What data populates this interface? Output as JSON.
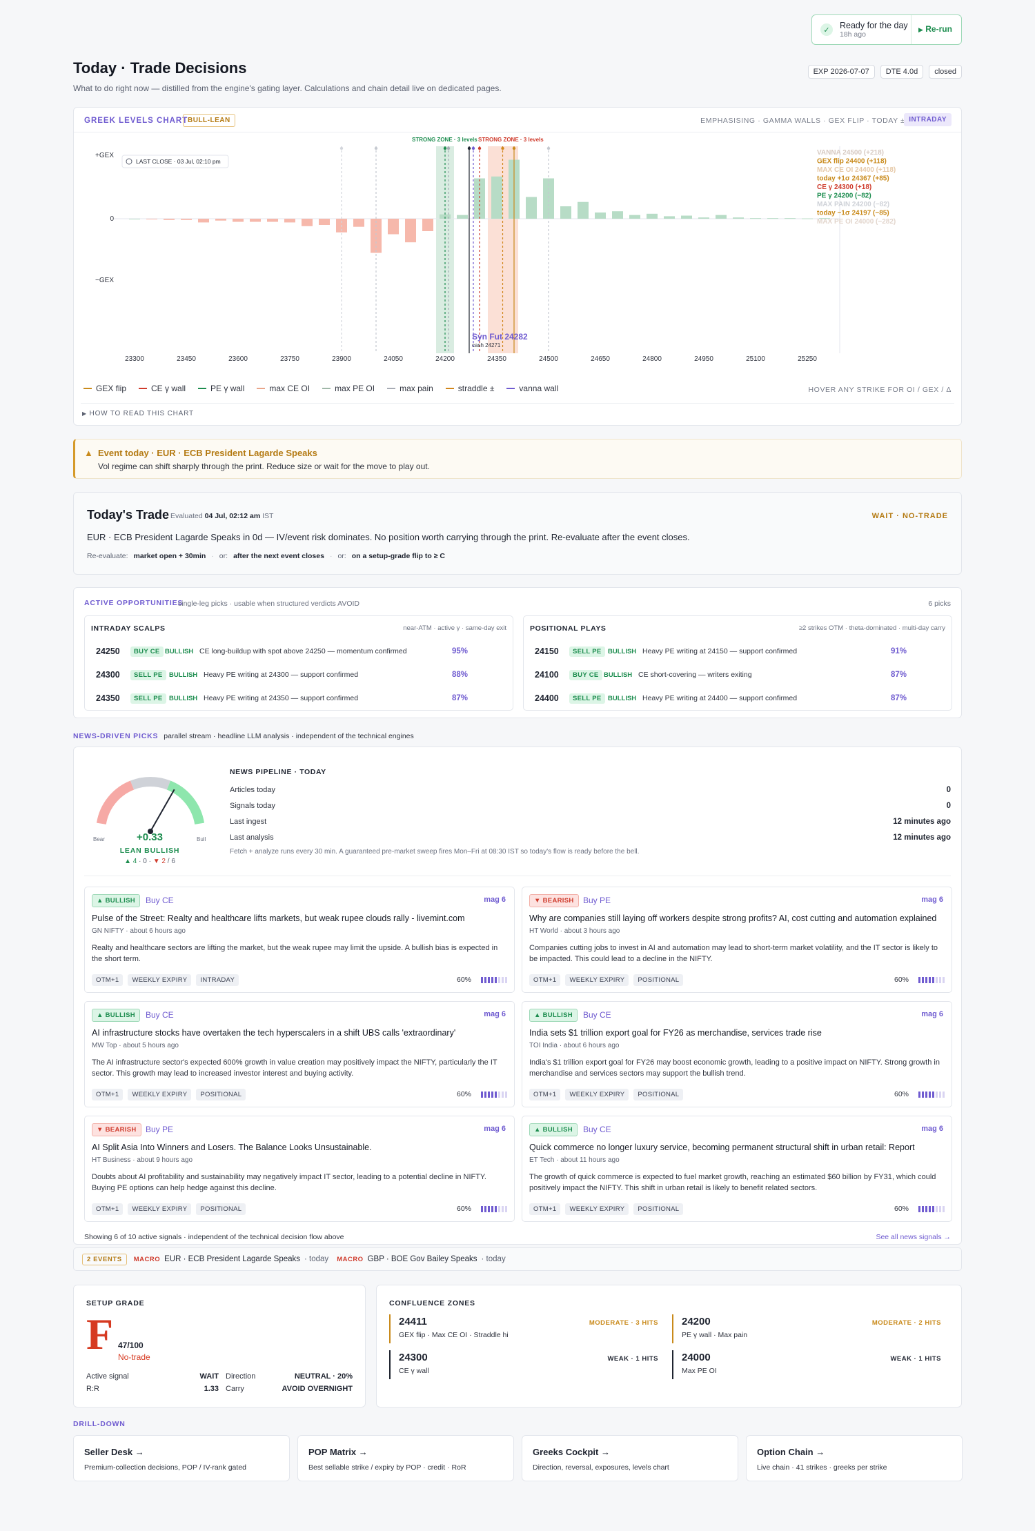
{
  "status": {
    "title": "Ready for the day",
    "age": "18h ago",
    "rerun": "Re-run"
  },
  "header": {
    "title": "Today · Trade Decisions",
    "subtitle": "What to do right now — distilled from the engine's gating layer. Calculations and chain detail live on dedicated pages.",
    "exp": "EXP 2026-07-07",
    "dte": "DTE 4.0d",
    "market": "closed"
  },
  "gex": {
    "title": "GREEK LEVELS CHART",
    "badge": "BULL-LEAN",
    "emph": "EMPHASISING · GAMMA WALLS · GEX FLIP · TODAY ±1Σ",
    "mode": "INTRADAY",
    "last_close": "LAST CLOSE · 03 Jul, 02:10 pm",
    "y_top": "+GEX",
    "y_mid": "0",
    "y_bot": "−GEX",
    "zone_green": "STRONG ZONE · 3 levels",
    "zone_red": "STRONG ZONE · 3 levels",
    "synfut": "Syn Fut 24282",
    "cash": "cash 24271",
    "hover_hint": "HOVER ANY STRIKE FOR OI / GEX / Δ",
    "how_to": "HOW TO READ THIS CHART",
    "levels": [
      {
        "text": "VANNA 24500 (+218)",
        "color": "#d6c9c1"
      },
      {
        "text": "GEX flip 24400 (+118)",
        "color": "#c98a1b"
      },
      {
        "text": "MAX CE OI 24400 (+118)",
        "color": "#e6c9a8"
      },
      {
        "text": "today +1σ 24367 (+85)",
        "color": "#c98a1b"
      },
      {
        "text": "CE γ 24300 (+18)",
        "color": "#cf3b2c"
      },
      {
        "text": "PE γ 24200 (−82)",
        "color": "#1d8d4f"
      },
      {
        "text": "MAX PAIN 24200 (−82)",
        "color": "#cfd2d8"
      },
      {
        "text": "today −1σ 24197 (−85)",
        "color": "#c98a1b"
      },
      {
        "text": "MAX PE OI 24000 (−282)",
        "color": "#e2d5cc"
      }
    ],
    "legend": [
      {
        "label": "GEX flip",
        "color": "#c98a1b",
        "dash": false
      },
      {
        "label": "CE γ wall",
        "color": "#cf3b2c",
        "dash": true
      },
      {
        "label": "PE γ wall",
        "color": "#1d8d4f",
        "dash": true
      },
      {
        "label": "max CE OI",
        "color": "#e9a58a",
        "dash": false
      },
      {
        "label": "max PE OI",
        "color": "#9fb7a8",
        "dash": false
      },
      {
        "label": "max pain",
        "color": "#a7abb4",
        "dash": false
      },
      {
        "label": "straddle ±",
        "color": "#d1861b",
        "dash": true
      },
      {
        "label": "vanna wall",
        "color": "#6f5bd0",
        "dash": false
      }
    ]
  },
  "chart_data": {
    "type": "bar",
    "title": "GREEK LEVELS CHART",
    "xlabel": "",
    "ylabel": "",
    "x_ticks": [
      23300,
      23450,
      23600,
      23750,
      23900,
      24050,
      24200,
      24350,
      24500,
      24650,
      24800,
      24950,
      25100,
      25250
    ],
    "strikes": [
      23300,
      23350,
      23400,
      23450,
      23500,
      23550,
      23600,
      23650,
      23700,
      23750,
      23800,
      23850,
      23900,
      23950,
      24000,
      24050,
      24100,
      24150,
      24200,
      24250,
      24300,
      24350,
      24400,
      24450,
      24500,
      24550,
      24600,
      24650,
      24700,
      24750,
      24800,
      24850,
      24900,
      24950,
      25000,
      25050,
      25100,
      25150,
      25200,
      25250,
      25300
    ],
    "gex": [
      0,
      -0.01,
      -0.02,
      -0.02,
      -0.06,
      -0.03,
      -0.05,
      -0.05,
      -0.05,
      -0.06,
      -0.12,
      -0.1,
      -0.22,
      -0.13,
      -0.55,
      -0.25,
      -0.38,
      -0.2,
      0.07,
      0.06,
      0.65,
      0.68,
      0.95,
      0.35,
      0.65,
      0.2,
      0.27,
      0.1,
      0.12,
      0.06,
      0.08,
      0.04,
      0.05,
      0.02,
      0.06,
      0.02,
      0.01,
      0.01,
      0.01,
      0.005,
      0.01
    ],
    "grid": false
  },
  "event": {
    "title": "Event today · EUR · ECB President Lagarde Speaks",
    "text": "Vol regime can shift sharply through the print. Reduce size or wait for the move to play out."
  },
  "trade": {
    "title": "Today's Trade",
    "evaluated_pre": "Evaluated",
    "evaluated": "04 Jul, 02:12 am",
    "tz": "IST",
    "status": "WAIT · NO-TRADE",
    "text": "EUR · ECB President Lagarde Speaks in 0d — IV/event risk dominates. No position worth carrying through the print. Re-evaluate after the event closes.",
    "reeval_label": "Re-evaluate:",
    "reeval1": "market open + 30min",
    "or1": "or:",
    "reeval2": "after the next event closes",
    "or2": "or:",
    "reeval3": "on a setup-grade flip to ≥ C"
  },
  "opps": {
    "title": "ACTIVE OPPORTUNITIES",
    "subtitle": "single-leg picks · usable when structured verdicts AVOID",
    "count": "6 picks",
    "intraday": {
      "title": "INTRADAY SCALPS",
      "hint": "near-ATM · active γ · same-day exit",
      "rows": [
        {
          "strike": "24250",
          "action": "BUY CE",
          "dir": "BULLISH",
          "note": "CE long-buildup with spot above 24250 — momentum confirmed",
          "pct": "95%"
        },
        {
          "strike": "24300",
          "action": "SELL PE",
          "dir": "BULLISH",
          "note": "Heavy PE writing at 24300 — support confirmed",
          "pct": "88%"
        },
        {
          "strike": "24350",
          "action": "SELL PE",
          "dir": "BULLISH",
          "note": "Heavy PE writing at 24350 — support confirmed",
          "pct": "87%"
        }
      ]
    },
    "positional": {
      "title": "POSITIONAL PLAYS",
      "hint": "≥2 strikes OTM · theta-dominated · multi-day carry",
      "rows": [
        {
          "strike": "24150",
          "action": "SELL PE",
          "dir": "BULLISH",
          "note": "Heavy PE writing at 24150 — support confirmed",
          "pct": "91%"
        },
        {
          "strike": "24100",
          "action": "BUY CE",
          "dir": "BULLISH",
          "note": "CE short-covering — writers exiting",
          "pct": "87%"
        },
        {
          "strike": "24400",
          "action": "SELL PE",
          "dir": "BULLISH",
          "note": "Heavy PE writing at 24400 — support confirmed",
          "pct": "87%"
        }
      ]
    }
  },
  "news": {
    "title": "NEWS-DRIVEN PICKS",
    "subtitle": "parallel stream · headline LLM analysis · independent of the technical engines",
    "gauge": {
      "value": 0.33,
      "value_text": "+0.33",
      "label": "LEAN BULLISH",
      "bear": "Bear",
      "bull": "Bull",
      "up": "▲ 4",
      "sep1": "·",
      "flat": "0",
      "sep2": "·",
      "down": "▼ 2",
      "total": "/ 6"
    },
    "pipeline": {
      "title": "NEWS PIPELINE · TODAY",
      "rows": [
        {
          "label": "Articles today",
          "value": "0"
        },
        {
          "label": "Signals today",
          "value": "0"
        },
        {
          "label": "Last ingest",
          "value": "12 minutes ago"
        },
        {
          "label": "Last analysis",
          "value": "12 minutes ago"
        }
      ],
      "note": "Fetch + analyze runs every 30 min. A guaranteed pre-market sweep fires Mon–Fri at 08:30 IST so today's flow is ready before the bell."
    },
    "items": [
      {
        "dir": "▲ BULLISH",
        "bull": true,
        "action": "Buy CE",
        "mag": "mag 6",
        "headline": "Pulse of the Street: Realty and healthcare lifts markets, but weak rupee clouds rally - livemint.com",
        "source": "GN NIFTY · about 6 hours ago",
        "body": "Realty and healthcare sectors are lifting the market, but the weak rupee may limit the upside. A bullish bias is expected in the short term.",
        "tags": [
          "OTM+1",
          "WEEKLY EXPIRY",
          "INTRADAY"
        ],
        "conf": "60%",
        "conf_val": 0.6
      },
      {
        "dir": "▼ BEARISH",
        "bull": false,
        "action": "Buy PE",
        "mag": "mag 6",
        "headline": "Why are companies still laying off workers despite strong profits? AI, cost cutting and automation explained",
        "source": "HT World · about 3 hours ago",
        "body": "Companies cutting jobs to invest in AI and automation may lead to short-term market volatility, and the IT sector is likely to be impacted. This could lead to a decline in the NIFTY.",
        "tags": [
          "OTM+1",
          "WEEKLY EXPIRY",
          "POSITIONAL"
        ],
        "conf": "60%",
        "conf_val": 0.6
      },
      {
        "dir": "▲ BULLISH",
        "bull": true,
        "action": "Buy CE",
        "mag": "mag 6",
        "headline": "AI infrastructure stocks have overtaken the tech hyperscalers in a shift UBS calls 'extraordinary'",
        "source": "MW Top · about 5 hours ago",
        "body": "The AI infrastructure sector's expected 600% growth in value creation may positively impact the NIFTY, particularly the IT sector. This growth may lead to increased investor interest and buying activity.",
        "tags": [
          "OTM+1",
          "WEEKLY EXPIRY",
          "POSITIONAL"
        ],
        "conf": "60%",
        "conf_val": 0.6
      },
      {
        "dir": "▲ BULLISH",
        "bull": true,
        "action": "Buy CE",
        "mag": "mag 6",
        "headline": "India sets $1 trillion export goal for FY26 as merchandise, services trade rise",
        "source": "TOI India · about 6 hours ago",
        "body": "India's $1 trillion export goal for FY26 may boost economic growth, leading to a positive impact on NIFTY. Strong growth in merchandise and services sectors may support the bullish trend.",
        "tags": [
          "OTM+1",
          "WEEKLY EXPIRY",
          "POSITIONAL"
        ],
        "conf": "60%",
        "conf_val": 0.6
      },
      {
        "dir": "▼ BEARISH",
        "bull": false,
        "action": "Buy PE",
        "mag": "mag 6",
        "headline": "AI Split Asia Into Winners and Losers. The Balance Looks Unsustainable.",
        "source": "HT Business · about 9 hours ago",
        "body": "Doubts about AI profitability and sustainability may negatively impact IT sector, leading to a potential decline in NIFTY. Buying PE options can help hedge against this decline.",
        "tags": [
          "OTM+1",
          "WEEKLY EXPIRY",
          "POSITIONAL"
        ],
        "conf": "60%",
        "conf_val": 0.6
      },
      {
        "dir": "▲ BULLISH",
        "bull": true,
        "action": "Buy CE",
        "mag": "mag 6",
        "headline": "Quick commerce no longer luxury service, becoming permanent structural shift in urban retail: Report",
        "source": "ET Tech · about 11 hours ago",
        "body": "The growth of quick commerce is expected to fuel market growth, reaching an estimated $60 billion by FY31, which could positively impact the NIFTY. This shift in urban retail is likely to benefit related sectors.",
        "tags": [
          "OTM+1",
          "WEEKLY EXPIRY",
          "POSITIONAL"
        ],
        "conf": "60%",
        "conf_val": 0.6
      }
    ],
    "showing": "Showing 6 of 10 active signals · independent of the technical decision flow above",
    "see_all": "See all news signals →"
  },
  "events_bar": {
    "count": "2 EVENTS",
    "items": [
      {
        "kind": "MACRO",
        "text": "EUR · ECB President Lagarde Speaks",
        "when": "· today"
      },
      {
        "kind": "MACRO",
        "text": "GBP · BOE Gov Bailey Speaks",
        "when": "· today"
      }
    ]
  },
  "grade": {
    "title": "SETUP GRADE",
    "letter": "F",
    "score": "47/100",
    "verdict": "No-trade",
    "rows": [
      {
        "l": "Active signal",
        "v": "WAIT",
        "l2": "Direction",
        "v2": "NEUTRAL · 20%"
      },
      {
        "l": "R:R",
        "v": "1.33",
        "l2": "Carry",
        "v2": "AVOID OVERNIGHT"
      }
    ]
  },
  "confluence": {
    "title": "CONFLUENCE ZONES",
    "zones": [
      {
        "level": "24411",
        "strength": "MODERATE · 3 HITS",
        "desc": "GEX flip · Max CE OI · Straddle hi",
        "color": "#c98a1b"
      },
      {
        "level": "24200",
        "strength": "MODERATE · 2 HITS",
        "desc": "PE γ wall · Max pain",
        "color": "#c98a1b"
      },
      {
        "level": "24300",
        "strength": "WEAK · 1 HITS",
        "desc": "CE γ wall",
        "color": "#1f2430"
      },
      {
        "level": "24000",
        "strength": "WEAK · 1 HITS",
        "desc": "Max PE OI",
        "color": "#1f2430"
      }
    ]
  },
  "drill": {
    "title": "DRILL-DOWN",
    "cards": [
      {
        "title": "Seller Desk →",
        "desc": "Premium-collection decisions, POP / IV-rank gated"
      },
      {
        "title": "POP Matrix →",
        "desc": "Best sellable strike / expiry by POP · credit · RoR"
      },
      {
        "title": "Greeks Cockpit →",
        "desc": "Direction, reversal, exposures, levels chart"
      },
      {
        "title": "Option Chain →",
        "desc": "Live chain · 41 strikes · greeks per strike"
      }
    ]
  }
}
